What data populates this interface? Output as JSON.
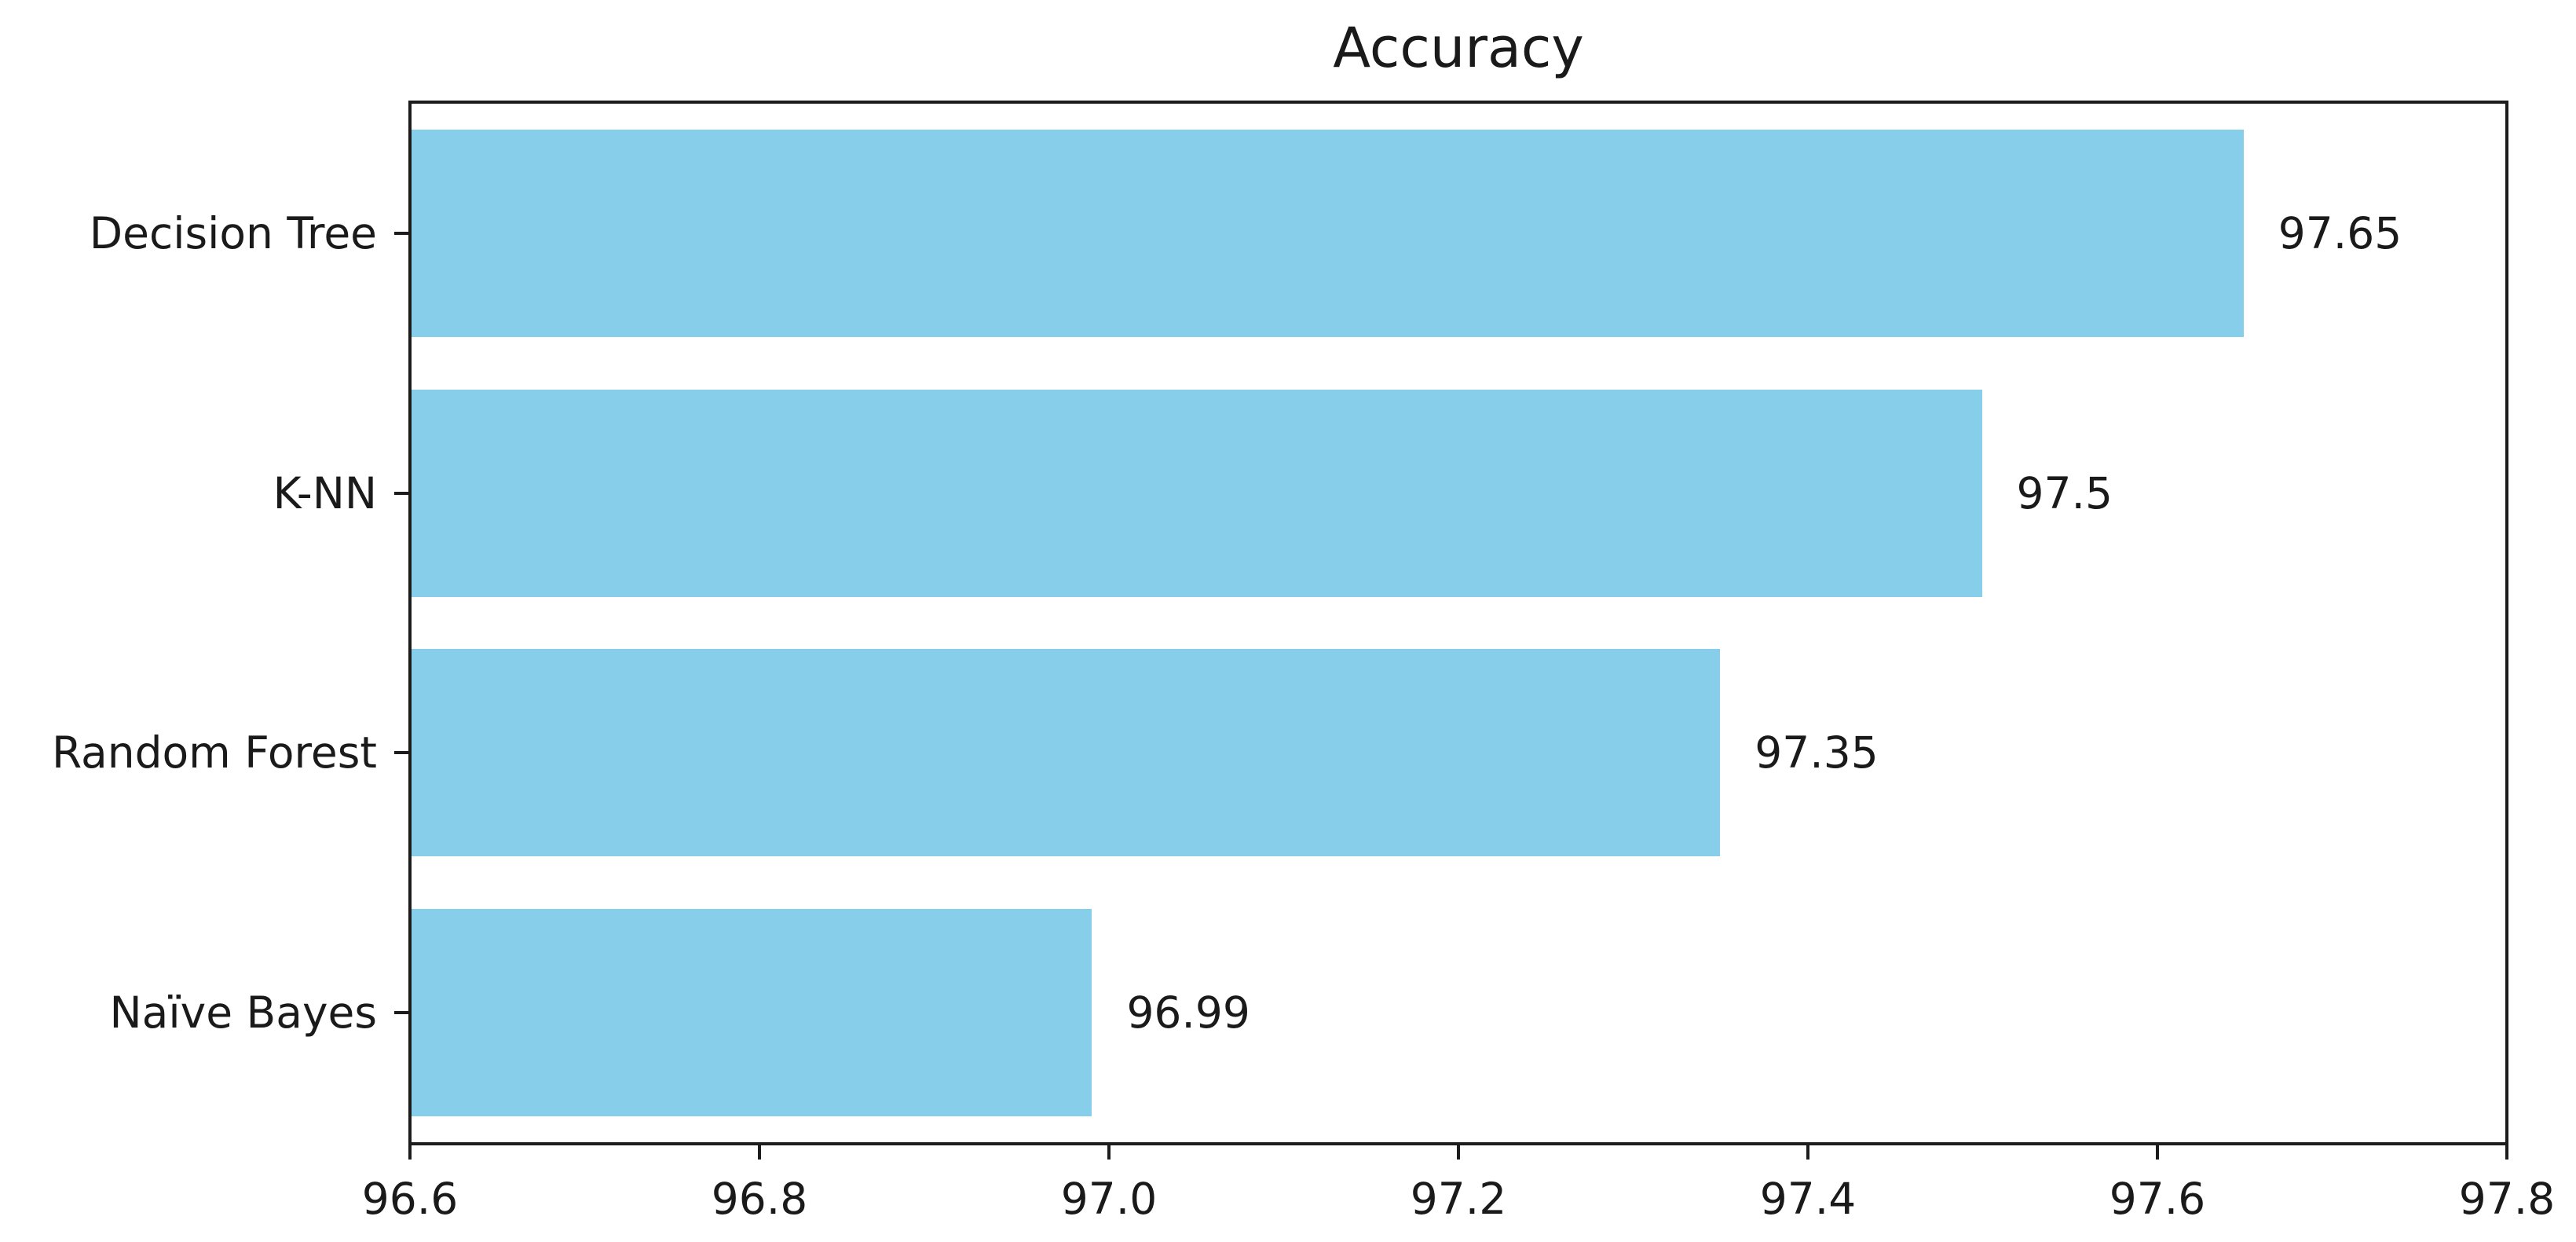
{
  "chart_data": {
    "type": "bar",
    "orientation": "horizontal",
    "title": "Accuracy",
    "categories": [
      "Decision Tree",
      "K-NN",
      "Random Forest",
      "Naïve Bayes"
    ],
    "values": [
      97.65,
      97.5,
      97.35,
      96.99
    ],
    "value_labels": [
      "97.65",
      "97.5",
      "97.35",
      "96.99"
    ],
    "xlim": [
      96.6,
      97.8
    ],
    "xticks": [
      "96.6",
      "96.8",
      "97.0",
      "97.2",
      "97.4",
      "97.6",
      "97.8"
    ],
    "xlabel": "",
    "ylabel": "",
    "grid": false,
    "legend": "none",
    "bar_color": "#87CEEB",
    "text_color": "#1a1a1a",
    "spine_color": "#1c1c1c",
    "background_color": "#ffffff"
  }
}
